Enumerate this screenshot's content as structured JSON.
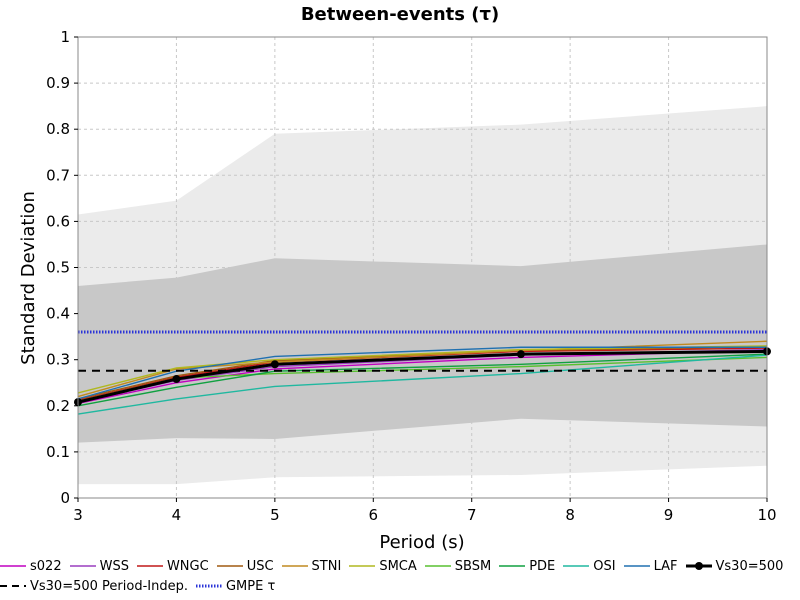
{
  "chart_data": {
    "type": "line",
    "title": "Between-events (τ)",
    "xlabel": "Period (s)",
    "ylabel": "Standard Deviation",
    "xlim": [
      3,
      10
    ],
    "ylim": [
      0,
      1
    ],
    "xticks": [
      "3",
      "4",
      "5",
      "6",
      "7",
      "8",
      "9",
      "10"
    ],
    "yticks": [
      "0",
      "0.1",
      "0.2",
      "0.3",
      "0.4",
      "0.5",
      "0.6",
      "0.7",
      "0.8",
      "0.9",
      "1"
    ],
    "grid": true,
    "legend_position": "bottom",
    "x": [
      3,
      4,
      5,
      7.5,
      10
    ],
    "bands": [
      {
        "lower": [
          0.03,
          0.03,
          0.045,
          0.05,
          0.07
        ],
        "upper": [
          0.615,
          0.645,
          0.79,
          0.81,
          0.85
        ],
        "color": "#ebebeb"
      },
      {
        "lower": [
          0.12,
          0.13,
          0.128,
          0.172,
          0.155
        ],
        "upper": [
          0.46,
          0.478,
          0.52,
          0.503,
          0.55
        ],
        "color": "#c8c8c8"
      }
    ],
    "series": [
      {
        "name": "s022",
        "color": "#c000c0",
        "values": [
          0.205,
          0.25,
          0.28,
          0.305,
          0.32
        ]
      },
      {
        "name": "WSS",
        "color": "#9a3fbf",
        "values": [
          0.207,
          0.255,
          0.285,
          0.31,
          0.322
        ]
      },
      {
        "name": "WNGC",
        "color": "#c01818",
        "values": [
          0.212,
          0.262,
          0.295,
          0.318,
          0.325
        ]
      },
      {
        "name": "USC",
        "color": "#a05a10",
        "values": [
          0.215,
          0.265,
          0.298,
          0.32,
          0.328
        ]
      },
      {
        "name": "STNI",
        "color": "#c08a20",
        "values": [
          0.22,
          0.28,
          0.295,
          0.32,
          0.34
        ]
      },
      {
        "name": "SMCA",
        "color": "#b0b820",
        "values": [
          0.228,
          0.282,
          0.3,
          0.322,
          0.33
        ]
      },
      {
        "name": "SBSM",
        "color": "#58c030",
        "values": [
          0.21,
          0.26,
          0.27,
          0.285,
          0.305
        ]
      },
      {
        "name": "PDE",
        "color": "#10a040",
        "values": [
          0.2,
          0.24,
          0.275,
          0.29,
          0.312
        ]
      },
      {
        "name": "OSI",
        "color": "#20b8a0",
        "values": [
          0.182,
          0.215,
          0.242,
          0.27,
          0.31
        ]
      },
      {
        "name": "LAF",
        "color": "#2070b0",
        "values": [
          0.215,
          0.275,
          0.307,
          0.327,
          0.327
        ]
      },
      {
        "name": "Vs30=500",
        "color": "#000000",
        "values": [
          0.208,
          0.258,
          0.29,
          0.312,
          0.318
        ],
        "markers": true
      },
      {
        "name": "Vs30=500 Period-Indep.",
        "color": "#000000",
        "values": [
          0.276,
          0.276,
          0.276,
          0.276,
          0.276
        ],
        "dash": "dashed"
      },
      {
        "name": "GMPE τ",
        "color": "#2b35d8",
        "values": [
          0.36,
          0.36,
          0.36,
          0.36,
          0.36
        ],
        "dash": "dotted"
      }
    ]
  }
}
